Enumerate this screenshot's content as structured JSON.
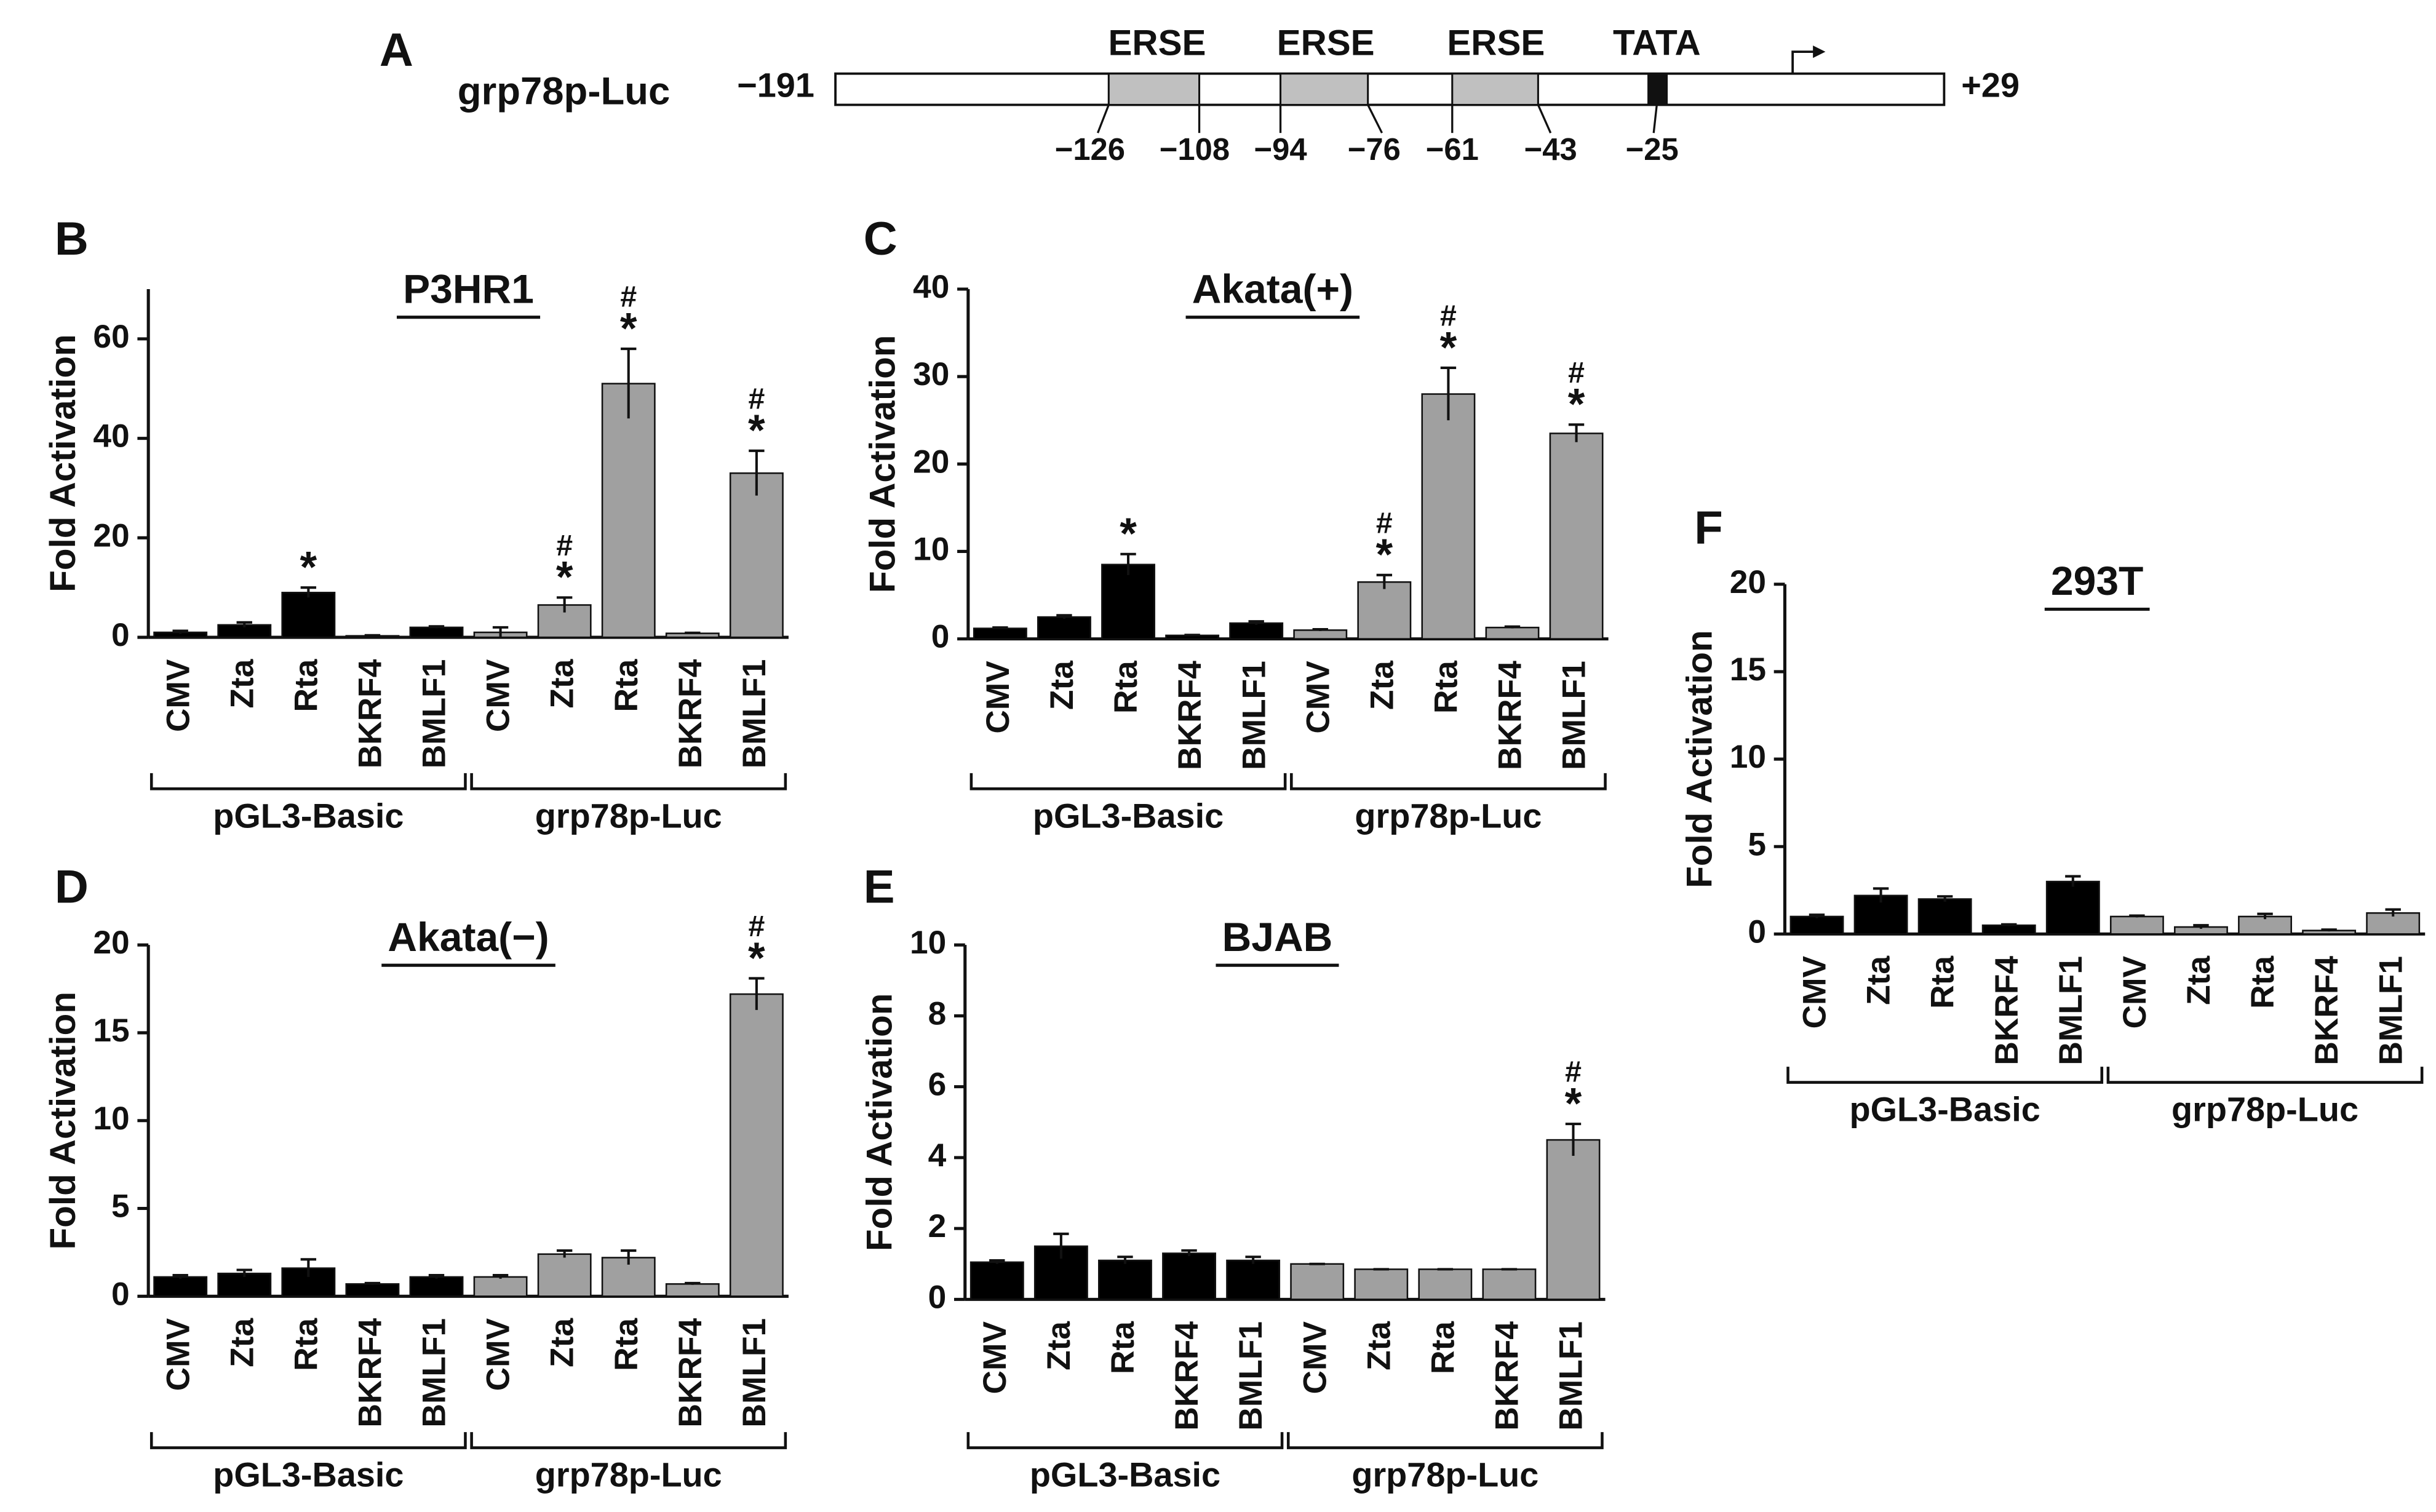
{
  "diagram": {
    "panel": "A",
    "name": "grp78p-Luc",
    "start": "−191",
    "end": "+29",
    "elements": [
      {
        "label": "ERSE",
        "bounds": [
          "−126",
          "−108"
        ]
      },
      {
        "label": "ERSE",
        "bounds": [
          "−94",
          "−76"
        ]
      },
      {
        "label": "ERSE",
        "bounds": [
          "−61",
          "−43"
        ]
      },
      {
        "label": "TATA",
        "bounds": [
          "−25"
        ]
      }
    ]
  },
  "chart_data": [
    {
      "type": "bar",
      "panel": "B",
      "title": "P3HR1",
      "y_label": "Fold Activation",
      "categories": [
        "CMV",
        "Zta",
        "Rta",
        "BKRF4",
        "BMLF1",
        "CMV",
        "Zta",
        "Rta",
        "BKRF4",
        "BMLF1"
      ],
      "groups": [
        {
          "label": "pGL3-Basic",
          "color": "#000000"
        },
        {
          "label": "grp78p-Luc",
          "color": "#a0a0a0"
        }
      ],
      "values": [
        1,
        2.5,
        9,
        0.3,
        2,
        1,
        6.5,
        51,
        0.8,
        33
      ],
      "errors": [
        0.3,
        0.5,
        1,
        0.1,
        0.2,
        1,
        1.5,
        7,
        0.1,
        4.5
      ],
      "significance": [
        null,
        null,
        [
          "*"
        ],
        null,
        null,
        null,
        [
          "*",
          "#"
        ],
        [
          "*",
          "#"
        ],
        null,
        [
          "*",
          "#"
        ]
      ],
      "ylim": [
        0,
        70
      ],
      "yticks": [
        0,
        20,
        40,
        60
      ]
    },
    {
      "type": "bar",
      "panel": "C",
      "title": "Akata(+)",
      "y_label": "Fold Activation",
      "categories": [
        "CMV",
        "Zta",
        "Rta",
        "BKRF4",
        "BMLF1",
        "CMV",
        "Zta",
        "Rta",
        "BKRF4",
        "BMLF1"
      ],
      "groups": [
        {
          "label": "pGL3-Basic",
          "color": "#000000"
        },
        {
          "label": "grp78p-Luc",
          "color": "#a0a0a0"
        }
      ],
      "values": [
        1.2,
        2.5,
        8.5,
        0.4,
        1.8,
        1,
        6.5,
        28,
        1.3,
        23.5
      ],
      "errors": [
        0.1,
        0.2,
        1.2,
        0.05,
        0.2,
        0.1,
        0.8,
        3,
        0.1,
        1
      ],
      "significance": [
        null,
        null,
        [
          "*"
        ],
        null,
        null,
        null,
        [
          "*",
          "#"
        ],
        [
          "*",
          "#"
        ],
        null,
        [
          "*",
          "#"
        ]
      ],
      "ylim": [
        0,
        40
      ],
      "yticks": [
        0,
        10,
        20,
        30,
        40
      ]
    },
    {
      "type": "bar",
      "panel": "D",
      "title": "Akata(−)",
      "y_label": "Fold Activation",
      "categories": [
        "CMV",
        "Zta",
        "Rta",
        "BKRF4",
        "BMLF1",
        "CMV",
        "Zta",
        "Rta",
        "BKRF4",
        "BMLF1"
      ],
      "groups": [
        {
          "label": "pGL3-Basic",
          "color": "#000000"
        },
        {
          "label": "grp78p-Luc",
          "color": "#a0a0a0"
        }
      ],
      "values": [
        1.1,
        1.3,
        1.6,
        0.7,
        1.1,
        1.1,
        2.4,
        2.2,
        0.7,
        17.2
      ],
      "errors": [
        0.1,
        0.2,
        0.5,
        0.05,
        0.1,
        0.1,
        0.2,
        0.4,
        0.05,
        0.9
      ],
      "significance": [
        null,
        null,
        null,
        null,
        null,
        null,
        null,
        null,
        null,
        [
          "*",
          "#"
        ]
      ],
      "ylim": [
        0,
        20
      ],
      "yticks": [
        0,
        5,
        10,
        15,
        20
      ]
    },
    {
      "type": "bar",
      "panel": "E",
      "title": "BJAB",
      "y_label": "Fold Activation",
      "categories": [
        "CMV",
        "Zta",
        "Rta",
        "BKRF4",
        "BMLF1",
        "CMV",
        "Zta",
        "Rta",
        "BKRF4",
        "BMLF1"
      ],
      "groups": [
        {
          "label": "pGL3-Basic",
          "color": "#000000"
        },
        {
          "label": "grp78p-Luc",
          "color": "#a0a0a0"
        }
      ],
      "values": [
        1.05,
        1.5,
        1.1,
        1.3,
        1.1,
        1,
        0.85,
        0.85,
        0.85,
        4.5
      ],
      "errors": [
        0.05,
        0.35,
        0.1,
        0.08,
        0.1,
        0,
        0,
        0,
        0,
        0.45
      ],
      "significance": [
        null,
        null,
        null,
        null,
        null,
        null,
        null,
        null,
        null,
        [
          "*",
          "#"
        ]
      ],
      "ylim": [
        0,
        10
      ],
      "yticks": [
        0,
        2,
        4,
        6,
        8,
        10
      ]
    },
    {
      "type": "bar",
      "panel": "F",
      "title": "293T",
      "y_label": "Fold Activation",
      "categories": [
        "CMV",
        "Zta",
        "Rta",
        "BKRF4",
        "BMLF1",
        "CMV",
        "Zta",
        "Rta",
        "BKRF4",
        "BMLF1"
      ],
      "groups": [
        {
          "label": "pGL3-Basic",
          "color": "#000000"
        },
        {
          "label": "grp78p-Luc",
          "color": "#a0a0a0"
        }
      ],
      "values": [
        1,
        2.2,
        2,
        0.5,
        3,
        1,
        0.4,
        1,
        0.2,
        1.2
      ],
      "errors": [
        0.1,
        0.4,
        0.15,
        0.05,
        0.3,
        0.05,
        0.1,
        0.15,
        0.05,
        0.2
      ],
      "significance": [
        null,
        null,
        null,
        null,
        null,
        null,
        null,
        null,
        null,
        null
      ],
      "ylim": [
        0,
        20
      ],
      "yticks": [
        0,
        5,
        10,
        15,
        20
      ]
    }
  ]
}
